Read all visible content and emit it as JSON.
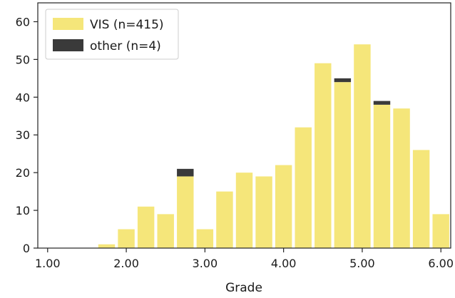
{
  "chart_data": {
    "type": "bar",
    "stacked": true,
    "title": "",
    "xlabel": "Grade",
    "ylabel": "",
    "xlim": [
      0.875,
      6.125
    ],
    "ylim": [
      0,
      65
    ],
    "xticks": [
      1.0,
      2.0,
      3.0,
      4.0,
      5.0,
      6.0
    ],
    "xtick_labels": [
      "1.00",
      "2.00",
      "3.00",
      "4.00",
      "5.00",
      "6.00"
    ],
    "yticks": [
      0,
      10,
      20,
      30,
      40,
      50,
      60
    ],
    "ytick_labels": [
      "0",
      "10",
      "20",
      "30",
      "40",
      "50",
      "60"
    ],
    "bin_width": 0.25,
    "x": [
      1.0,
      1.25,
      1.5,
      1.75,
      2.0,
      2.25,
      2.5,
      2.75,
      3.0,
      3.25,
      3.5,
      3.75,
      4.0,
      4.25,
      4.5,
      4.75,
      5.0,
      5.25,
      5.5,
      5.75,
      6.0
    ],
    "series": [
      {
        "name": "VIS (n=415)",
        "color": "#f5e67a",
        "values": [
          0,
          0,
          0,
          1,
          5,
          11,
          9,
          19,
          5,
          15,
          20,
          19,
          22,
          32,
          49,
          44,
          54,
          38,
          37,
          26,
          9
        ]
      },
      {
        "name": "other (n=4)",
        "color": "#3a3a3a",
        "values": [
          0,
          0,
          0,
          0,
          0,
          0,
          0,
          2,
          0,
          0,
          0,
          0,
          0,
          0,
          0,
          1,
          0,
          1,
          0,
          0,
          0
        ]
      }
    ],
    "legend_position": "top-left",
    "grid": false
  }
}
